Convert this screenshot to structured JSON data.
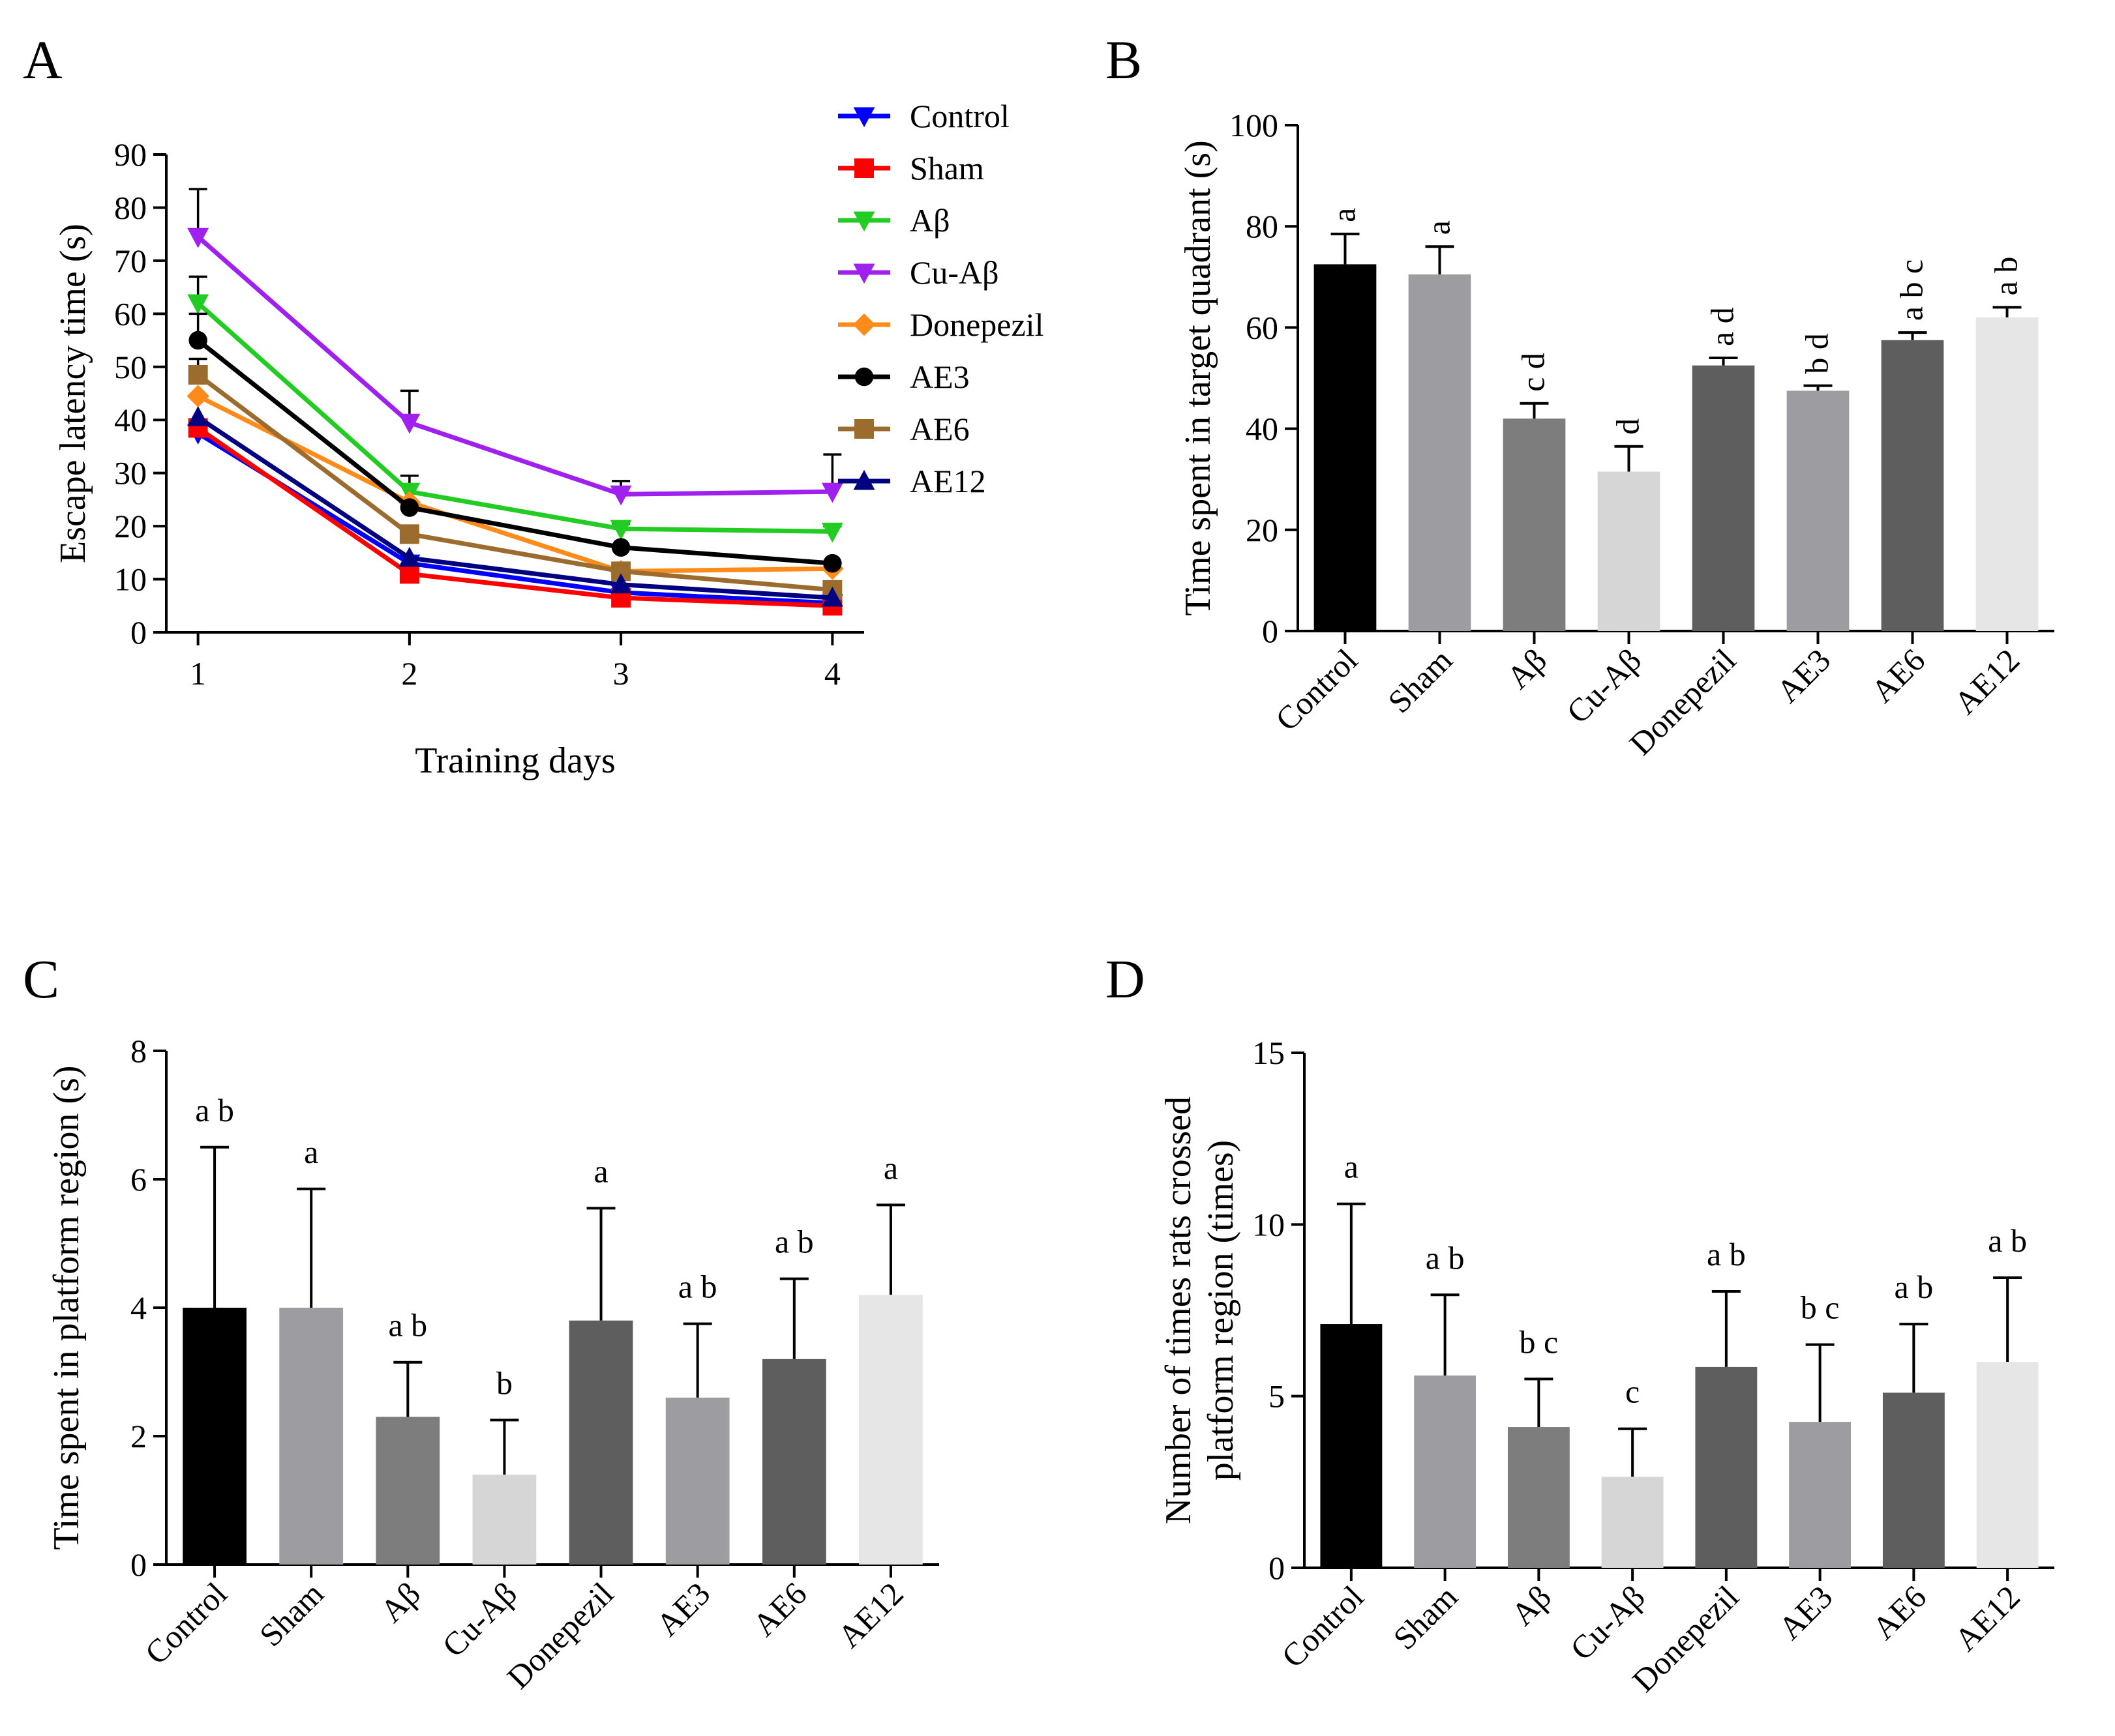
{
  "figure": {
    "panels": [
      "A",
      "B",
      "C",
      "D"
    ],
    "colors": {
      "Control": "#0000ff",
      "Sham": "#ff0000",
      "Aβ": "#22cc22",
      "Cu-Aβ": "#a020f0",
      "Donepezil": "#ff8c1a",
      "AE3": "#000000",
      "AE6": "#9c6b2e",
      "AE12": "#000080"
    },
    "bar_colors": [
      "#000000",
      "#9d9da1",
      "#7d7d7d",
      "#d6d6d6",
      "#5e5e5e",
      "#9d9da1",
      "#5e5e5e",
      "#e6e6e6"
    ]
  },
  "chart_data": [
    {
      "id": "A",
      "type": "line",
      "panel_label": "A",
      "xlabel": "Training days",
      "ylabel": "Escape latency time (s)",
      "x": [
        1,
        2,
        3,
        4
      ],
      "xlim": [
        0.85,
        4.15
      ],
      "ylim": [
        0,
        90
      ],
      "yticks": [
        0,
        10,
        20,
        30,
        40,
        50,
        60,
        70,
        80,
        90
      ],
      "legend_position": "top-right",
      "series": [
        {
          "name": "Control",
          "marker": "triangle-down",
          "values": [
            37.5,
            13.0,
            7.5,
            5.5
          ],
          "err": [
            0,
            0,
            0,
            0
          ]
        },
        {
          "name": "Sham",
          "marker": "square",
          "values": [
            38.5,
            11.0,
            6.5,
            5.0
          ],
          "err": [
            0,
            0,
            0,
            0
          ]
        },
        {
          "name": "Aβ",
          "marker": "triangle-down",
          "values": [
            62.0,
            26.5,
            19.5,
            19.0
          ],
          "err": [
            5,
            3,
            1,
            1
          ]
        },
        {
          "name": "Cu-Aβ",
          "marker": "triangle-down",
          "values": [
            74.5,
            39.5,
            26.0,
            26.5
          ],
          "err": [
            9,
            6,
            2.5,
            7
          ]
        },
        {
          "name": "Donepezil",
          "marker": "diamond",
          "values": [
            44.5,
            24.5,
            11.5,
            12.0
          ],
          "err": [
            0,
            0,
            0,
            0
          ]
        },
        {
          "name": "AE3",
          "marker": "circle",
          "values": [
            55.0,
            23.5,
            16.0,
            13.0
          ],
          "err": [
            5,
            0,
            0,
            0
          ]
        },
        {
          "name": "AE6",
          "marker": "square",
          "values": [
            48.5,
            18.5,
            11.5,
            8.0
          ],
          "err": [
            3,
            0,
            0,
            0
          ]
        },
        {
          "name": "AE12",
          "marker": "triangle-up",
          "values": [
            40.5,
            14.0,
            9.0,
            6.5
          ],
          "err": [
            0,
            0,
            0,
            0
          ]
        }
      ]
    },
    {
      "id": "B",
      "type": "bar",
      "panel_label": "B",
      "xlabel": "",
      "ylabel": "Time spent in target quadrant (s)",
      "categories": [
        "Control",
        "Sham",
        "Aβ",
        "Cu-Aβ",
        "Donepezil",
        "AE3",
        "AE6",
        "AE12"
      ],
      "values": [
        72.5,
        70.5,
        42.0,
        31.5,
        52.5,
        47.5,
        57.5,
        62.0
      ],
      "err": [
        6,
        5.5,
        3,
        5,
        1.5,
        1,
        1.5,
        2
      ],
      "letters": [
        "a",
        "a",
        "c d",
        "d",
        "a d",
        "b d",
        "a b c",
        "a b"
      ],
      "letters_rotated": true,
      "ylim": [
        0,
        100
      ],
      "yticks": [
        0,
        20,
        40,
        60,
        80,
        100
      ]
    },
    {
      "id": "C",
      "type": "bar",
      "panel_label": "C",
      "xlabel": "",
      "ylabel": "Time spent in platform region (s)",
      "categories": [
        "Control",
        "Sham",
        "Aβ",
        "Cu-Aβ",
        "Donepezil",
        "AE3",
        "AE6",
        "AE12"
      ],
      "values": [
        4.0,
        4.0,
        2.3,
        1.4,
        3.8,
        2.6,
        3.2,
        4.2
      ],
      "err": [
        2.5,
        1.85,
        0.85,
        0.85,
        1.75,
        1.15,
        1.25,
        1.4
      ],
      "letters": [
        "a b",
        "a",
        "a b",
        "b",
        "a",
        "a b",
        "a b",
        "a"
      ],
      "letters_rotated": false,
      "ylim": [
        0,
        8
      ],
      "yticks": [
        0,
        2,
        4,
        6,
        8
      ]
    },
    {
      "id": "D",
      "type": "bar",
      "panel_label": "D",
      "xlabel": "",
      "ylabel_lines": [
        "Number of times rats crossed",
        "platform region (times)"
      ],
      "categories": [
        "Control",
        "Sham",
        "Aβ",
        "Cu-Aβ",
        "Donepezil",
        "AE3",
        "AE6",
        "AE12"
      ],
      "values": [
        7.1,
        5.6,
        4.1,
        2.65,
        5.85,
        4.25,
        5.1,
        6.0
      ],
      "err": [
        3.5,
        2.35,
        1.4,
        1.4,
        2.2,
        2.25,
        2.0,
        2.45
      ],
      "letters": [
        "a",
        "a b",
        "b c",
        "c",
        "a b",
        "b c",
        "a b",
        "a b"
      ],
      "letters_rotated": false,
      "ylim": [
        0,
        15
      ],
      "yticks": [
        0,
        5,
        10,
        15
      ]
    }
  ]
}
